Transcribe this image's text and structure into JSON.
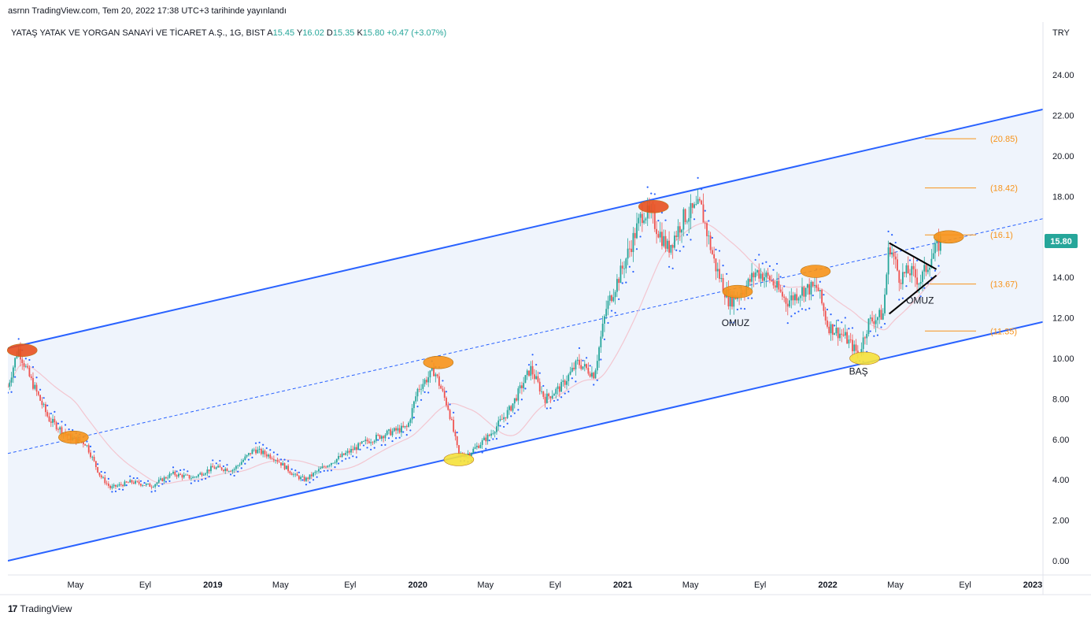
{
  "header": {
    "published": "asrnn TradingView.com, Tem 20, 2022 17:38 UTC+3 tarihinde yayınlandı"
  },
  "legend": {
    "symbol": "YATAŞ YATAK VE YORGAN SANAYİ VE TİCARET A.Ş., 1G, BIST",
    "open_label": "A",
    "open": "15.45",
    "high_label": "Y",
    "high": "16.02",
    "low_label": "D",
    "low": "15.35",
    "close_label": "K",
    "close": "15.80",
    "change": "+0.47 (+3.07%)"
  },
  "footer": {
    "brand": "TradingView",
    "logo": "17"
  },
  "colors": {
    "channel": "#2962ff",
    "up": "#26a69a",
    "down": "#ef5350",
    "sar": "#2962ff",
    "level": "#f7931a",
    "price_badge": "#26a69a"
  },
  "chart_data": {
    "type": "candlestick",
    "currency": "TRY",
    "last_price": "15.80",
    "y_ticks": [
      "24.00",
      "22.00",
      "20.00",
      "18.00",
      "16.00",
      "14.00",
      "12.00",
      "10.00",
      "8.00",
      "6.00",
      "4.00",
      "2.00",
      "0.00"
    ],
    "ylim": [
      0,
      24
    ],
    "x_ticks": [
      {
        "label": "May",
        "bold": false,
        "t": 2018.33
      },
      {
        "label": "Eyl",
        "bold": false,
        "t": 2018.67
      },
      {
        "label": "2019",
        "bold": true,
        "t": 2019.0
      },
      {
        "label": "May",
        "bold": false,
        "t": 2019.33
      },
      {
        "label": "Eyl",
        "bold": false,
        "t": 2019.67
      },
      {
        "label": "2020",
        "bold": true,
        "t": 2020.0
      },
      {
        "label": "May",
        "bold": false,
        "t": 2020.33
      },
      {
        "label": "Eyl",
        "bold": false,
        "t": 2020.67
      },
      {
        "label": "2021",
        "bold": true,
        "t": 2021.0
      },
      {
        "label": "May",
        "bold": false,
        "t": 2021.33
      },
      {
        "label": "Eyl",
        "bold": false,
        "t": 2021.67
      },
      {
        "label": "2022",
        "bold": true,
        "t": 2022.0
      },
      {
        "label": "May",
        "bold": false,
        "t": 2022.33
      },
      {
        "label": "Eyl",
        "bold": false,
        "t": 2022.67
      },
      {
        "label": "2023",
        "bold": true,
        "t": 2023.0
      }
    ],
    "xlim": [
      2018.0,
      2023.05
    ],
    "price_path": [
      [
        2018.0,
        8.6
      ],
      [
        2018.05,
        10.5
      ],
      [
        2018.1,
        9.2
      ],
      [
        2018.2,
        7.0
      ],
      [
        2018.3,
        6.1
      ],
      [
        2018.38,
        5.8
      ],
      [
        2018.45,
        4.2
      ],
      [
        2018.5,
        3.6
      ],
      [
        2018.6,
        3.9
      ],
      [
        2018.7,
        3.7
      ],
      [
        2018.8,
        4.3
      ],
      [
        2018.9,
        4.1
      ],
      [
        2019.0,
        4.6
      ],
      [
        2019.1,
        4.5
      ],
      [
        2019.2,
        5.5
      ],
      [
        2019.3,
        5.1
      ],
      [
        2019.4,
        4.2
      ],
      [
        2019.45,
        4.0
      ],
      [
        2019.55,
        4.7
      ],
      [
        2019.65,
        5.3
      ],
      [
        2019.75,
        5.9
      ],
      [
        2019.85,
        6.3
      ],
      [
        2019.95,
        6.6
      ],
      [
        2020.0,
        8.5
      ],
      [
        2020.08,
        9.4
      ],
      [
        2020.15,
        7.5
      ],
      [
        2020.2,
        5.2
      ],
      [
        2020.25,
        5.3
      ],
      [
        2020.35,
        6.2
      ],
      [
        2020.45,
        7.5
      ],
      [
        2020.55,
        9.5
      ],
      [
        2020.62,
        8.0
      ],
      [
        2020.7,
        8.6
      ],
      [
        2020.78,
        9.8
      ],
      [
        2020.86,
        9.2
      ],
      [
        2020.92,
        12.5
      ],
      [
        2021.0,
        14.5
      ],
      [
        2021.1,
        17.3
      ],
      [
        2021.15,
        16.8
      ],
      [
        2021.22,
        15.4
      ],
      [
        2021.3,
        17.0
      ],
      [
        2021.38,
        17.5
      ],
      [
        2021.45,
        14.6
      ],
      [
        2021.52,
        12.8
      ],
      [
        2021.6,
        13.5
      ],
      [
        2021.65,
        14.3
      ],
      [
        2021.72,
        13.9
      ],
      [
        2021.8,
        12.8
      ],
      [
        2021.88,
        13.4
      ],
      [
        2021.95,
        13.5
      ],
      [
        2022.0,
        11.6
      ],
      [
        2022.08,
        11.1
      ],
      [
        2022.15,
        10.2
      ],
      [
        2022.2,
        11.8
      ],
      [
        2022.27,
        12.2
      ],
      [
        2022.3,
        15.7
      ],
      [
        2022.35,
        14.0
      ],
      [
        2022.4,
        14.3
      ],
      [
        2022.45,
        13.8
      ],
      [
        2022.5,
        14.9
      ],
      [
        2022.55,
        15.8
      ]
    ],
    "channel_upper": [
      [
        2018.0,
        10.5
      ],
      [
        2023.05,
        22.3
      ]
    ],
    "channel_lower": [
      [
        2018.0,
        0.0
      ],
      [
        2023.05,
        11.8
      ]
    ],
    "channel_mid": [
      [
        2018.0,
        5.3
      ],
      [
        2023.05,
        16.9
      ]
    ],
    "fib_levels": [
      {
        "label": "(20.85)",
        "value": 20.85
      },
      {
        "label": "(18.42)",
        "value": 18.42
      },
      {
        "label": "(16.1)",
        "value": 16.1
      },
      {
        "label": "(13.67)",
        "value": 13.67
      },
      {
        "label": "(11.35)",
        "value": 11.35
      }
    ],
    "annotations": [
      {
        "text": "OMUZ",
        "t": 2021.55,
        "y": 11.6
      },
      {
        "text": "BAŞ",
        "t": 2022.15,
        "y": 9.2
      },
      {
        "text": "OMUZ",
        "t": 2022.45,
        "y": 12.7
      }
    ],
    "highlights": [
      {
        "t": 2018.07,
        "y": 10.4,
        "kind": "red"
      },
      {
        "t": 2018.32,
        "y": 6.1,
        "kind": "orange"
      },
      {
        "t": 2020.1,
        "y": 9.8,
        "kind": "orange"
      },
      {
        "t": 2020.2,
        "y": 5.0,
        "kind": "yellow"
      },
      {
        "t": 2021.15,
        "y": 17.5,
        "kind": "red"
      },
      {
        "t": 2021.56,
        "y": 13.3,
        "kind": "orange"
      },
      {
        "t": 2021.94,
        "y": 14.3,
        "kind": "orange"
      },
      {
        "t": 2022.18,
        "y": 10.0,
        "kind": "yellow"
      },
      {
        "t": 2022.59,
        "y": 16.0,
        "kind": "orange"
      }
    ],
    "triangle": {
      "upper": [
        [
          2022.3,
          15.7
        ],
        [
          2022.53,
          14.4
        ]
      ],
      "lower": [
        [
          2022.3,
          12.2
        ],
        [
          2022.53,
          14.1
        ]
      ]
    },
    "grid": false,
    "legend": "top-left"
  }
}
